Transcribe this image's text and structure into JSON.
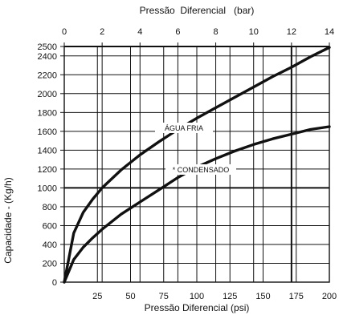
{
  "chart_data": {
    "type": "line",
    "title": "",
    "x_top": {
      "label": "Pressão  Diferencial   (bar)",
      "range": [
        0,
        14
      ],
      "ticks": [
        0,
        2,
        4,
        6,
        8,
        10,
        12,
        14
      ]
    },
    "x_bottom": {
      "label": "Pressão Diferencial (psi)",
      "range": [
        0,
        200
      ],
      "ticks": [
        25,
        50,
        75,
        100,
        125,
        150,
        175,
        200
      ]
    },
    "y": {
      "label": "Capacidade - (Kg/h)",
      "range": [
        0,
        2500
      ],
      "ticks": [
        0,
        200,
        400,
        600,
        800,
        1000,
        1200,
        1400,
        1600,
        1800,
        2000,
        2200,
        2400,
        2500
      ]
    },
    "grid": true,
    "series": [
      {
        "name": "ÁGUA FRIA",
        "x": [
          0,
          0.5,
          1,
          1.5,
          2,
          3,
          4,
          5,
          6,
          7,
          8,
          9,
          10,
          11,
          12,
          13,
          14
        ],
        "y": [
          0,
          520,
          740,
          880,
          1000,
          1190,
          1350,
          1490,
          1620,
          1740,
          1850,
          1960,
          2070,
          2180,
          2280,
          2390,
          2490
        ]
      },
      {
        "name": "CONDENSADO",
        "label": "* CONDENSADO",
        "x": [
          0,
          0.5,
          1,
          1.5,
          2,
          3,
          4,
          5,
          6,
          7,
          8,
          9,
          10,
          11,
          12,
          13,
          14
        ],
        "y": [
          0,
          240,
          370,
          470,
          560,
          720,
          850,
          980,
          1110,
          1220,
          1310,
          1390,
          1460,
          1520,
          1570,
          1620,
          1650
        ]
      }
    ]
  }
}
